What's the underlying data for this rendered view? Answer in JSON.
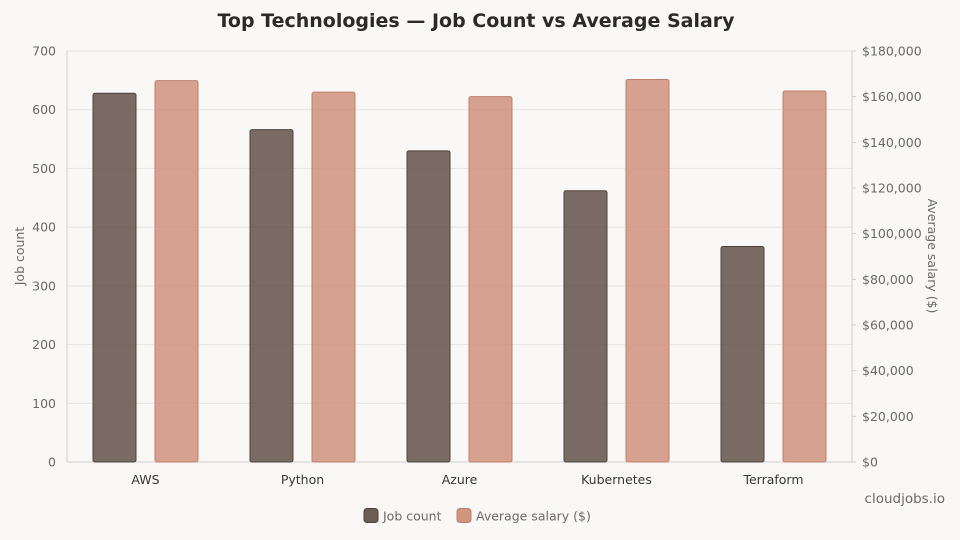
{
  "chart_data": {
    "type": "bar",
    "title": "Top Technologies — Job Count vs Average Salary",
    "categories": [
      "AWS",
      "Python",
      "Azure",
      "Kubernetes",
      "Terraform"
    ],
    "series": [
      {
        "name": "Job count",
        "axis": "left",
        "color": "#6e5d57",
        "values": [
          628,
          566,
          530,
          462,
          367
        ]
      },
      {
        "name": "Average salary ($)",
        "axis": "right",
        "color": "#d09480",
        "values": [
          167000,
          162000,
          160000,
          167500,
          162500
        ]
      }
    ],
    "ylabel": "Job count",
    "ylabel_right": "Average salary ($)",
    "ylim": [
      0,
      700
    ],
    "ylim_right": [
      0,
      180000
    ],
    "yticks": [
      "0",
      "100",
      "200",
      "300",
      "400",
      "500",
      "600",
      "700"
    ],
    "yticks_right": [
      "$0",
      "$20,000",
      "$40,000",
      "$60,000",
      "$80,000",
      "$100,000",
      "$120,000",
      "$140,000",
      "$160,000",
      "$180,000"
    ],
    "grid": true,
    "legend_position": "bottom-center"
  },
  "watermark": "cloudjobs.io"
}
